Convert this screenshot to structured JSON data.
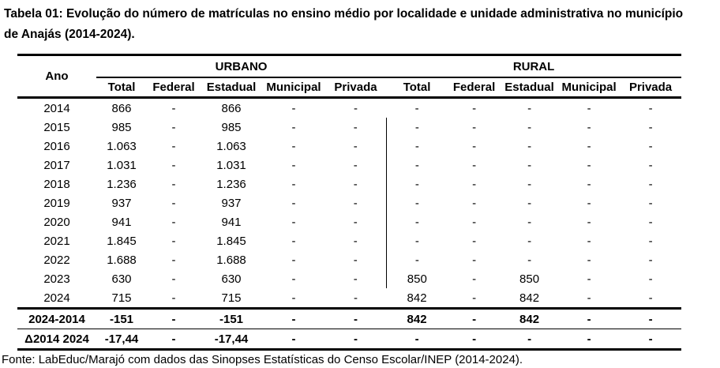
{
  "chart_data": {
    "type": "table",
    "title": "Tabela 01: Evolução do número de matrículas no ensino médio por localidade e unidade administrativa no município de Anajás (2014-2024).",
    "source": "Fonte: LabEduc/Marajó com dados das Sinopses Estatísticas do Censo Escolar/INEP (2014-2024).",
    "row_header": "Ano",
    "groups": [
      {
        "label": "URBANO",
        "subcolumns": [
          "Total",
          "Federal",
          "Estadual",
          "Municipal",
          "Privada"
        ]
      },
      {
        "label": "RURAL",
        "subcolumns": [
          "Total",
          "Federal",
          "Estadual",
          "Municipal",
          "Privada"
        ]
      }
    ],
    "rows": [
      {
        "ano": "2014",
        "values": [
          "866",
          "-",
          "866",
          "-",
          "-",
          "-",
          "-",
          "-",
          "-",
          "-"
        ]
      },
      {
        "ano": "2015",
        "values": [
          "985",
          "-",
          "985",
          "-",
          "-",
          "-",
          "-",
          "-",
          "-",
          "-"
        ]
      },
      {
        "ano": "2016",
        "values": [
          "1.063",
          "-",
          "1.063",
          "-",
          "-",
          "-",
          "-",
          "-",
          "-",
          "-"
        ]
      },
      {
        "ano": "2017",
        "values": [
          "1.031",
          "-",
          "1.031",
          "-",
          "-",
          "-",
          "-",
          "-",
          "-",
          "-"
        ]
      },
      {
        "ano": "2018",
        "values": [
          "1.236",
          "-",
          "1.236",
          "-",
          "-",
          "-",
          "-",
          "-",
          "-",
          "-"
        ]
      },
      {
        "ano": "2019",
        "values": [
          "937",
          "-",
          "937",
          "-",
          "-",
          "-",
          "-",
          "-",
          "-",
          "-"
        ]
      },
      {
        "ano": "2020",
        "values": [
          "941",
          "-",
          "941",
          "-",
          "-",
          "-",
          "-",
          "-",
          "-",
          "-"
        ]
      },
      {
        "ano": "2021",
        "values": [
          "1.845",
          "-",
          "1.845",
          "-",
          "-",
          "-",
          "-",
          "-",
          "-",
          "-"
        ]
      },
      {
        "ano": "2022",
        "values": [
          "1.688",
          "-",
          "1.688",
          "-",
          "-",
          "-",
          "-",
          "-",
          "-",
          "-"
        ]
      },
      {
        "ano": "2023",
        "values": [
          "630",
          "-",
          "630",
          "-",
          "-",
          "850",
          "-",
          "850",
          "-",
          "-"
        ]
      },
      {
        "ano": "2024",
        "values": [
          "715",
          "-",
          "715",
          "-",
          "-",
          "842",
          "-",
          "842",
          "-",
          "-"
        ]
      }
    ],
    "summary_rows": [
      {
        "ano": "2024-2014",
        "values": [
          "-151",
          "-",
          "-151",
          "-",
          "-",
          "842",
          "-",
          "842",
          "-",
          "-"
        ]
      },
      {
        "ano": "Δ2014 2024",
        "values": [
          "-17,44",
          "-",
          "-17,44",
          "-",
          "-",
          "-",
          "-",
          "-",
          "-",
          "-"
        ]
      }
    ],
    "divider_years": [
      "2015",
      "2016",
      "2017",
      "2018",
      "2019",
      "2020",
      "2021",
      "2022",
      "2023"
    ]
  },
  "colors": {
    "text": "#000000",
    "background": "#ffffff",
    "line": "#000000"
  }
}
